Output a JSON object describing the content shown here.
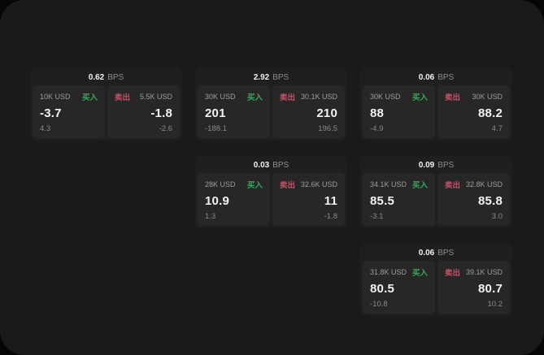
{
  "theme": {
    "page_bg": "#060606",
    "container_bg": "#1a1a1a",
    "card_bg": "#1f1f1f",
    "panel_bg": "#272727",
    "text_primary": "#f2f2f2",
    "text_label": "#9e9e9e",
    "text_muted": "#8d8d8d",
    "text_sub": "#8a8a8a",
    "buy_color": "#37a95b",
    "sell_color": "#c05365"
  },
  "labels": {
    "bps_suffix": "BPS",
    "buy": "买入",
    "sell": "卖出"
  },
  "cards": [
    {
      "bps": "0.62",
      "buy": {
        "amount": "10K USD",
        "value": "-3.7",
        "sub": "4.3"
      },
      "sell": {
        "amount": "5.5K USD",
        "value": "-1.8",
        "sub": "-2.6"
      }
    },
    {
      "bps": "2.92",
      "buy": {
        "amount": "30K USD",
        "value": "201",
        "sub": "-188.1"
      },
      "sell": {
        "amount": "30.1K USD",
        "value": "210",
        "sub": "196.5"
      }
    },
    {
      "bps": "0.06",
      "buy": {
        "amount": "30K USD",
        "value": "88",
        "sub": "-4.9"
      },
      "sell": {
        "amount": "30K USD",
        "value": "88.2",
        "sub": "4.7"
      }
    },
    {
      "bps": "0.03",
      "buy": {
        "amount": "28K USD",
        "value": "10.9",
        "sub": "1.3"
      },
      "sell": {
        "amount": "32.6K USD",
        "value": "11",
        "sub": "-1.8"
      }
    },
    {
      "bps": "0.09",
      "buy": {
        "amount": "34.1K USD",
        "value": "85.5",
        "sub": "-3.1"
      },
      "sell": {
        "amount": "32.8K USD",
        "value": "85.8",
        "sub": "3.0"
      }
    },
    {
      "bps": "0.06",
      "buy": {
        "amount": "31.8K USD",
        "value": "80.5",
        "sub": "-10.8"
      },
      "sell": {
        "amount": "39.1K USD",
        "value": "80.7",
        "sub": "10.2"
      }
    }
  ]
}
